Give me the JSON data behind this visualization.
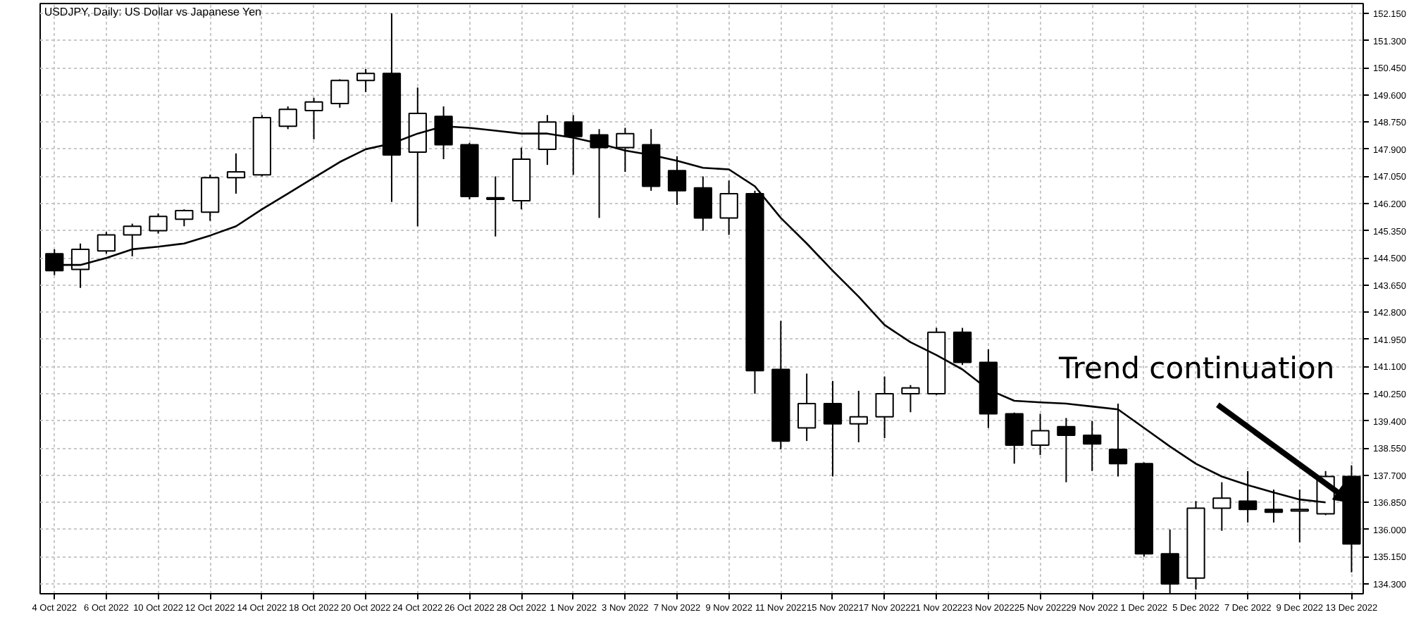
{
  "chart_data": {
    "type": "candlestick",
    "title": "USDJPY, Daily: US Dollar vs Japanese Yen",
    "categories": [
      "4 Oct 2022",
      null,
      "6 Oct 2022",
      null,
      "10 Oct 2022",
      null,
      "12 Oct 2022",
      null,
      "14 Oct 2022",
      null,
      "18 Oct 2022",
      null,
      "20 Oct 2022",
      null,
      "24 Oct 2022",
      null,
      "26 Oct 2022",
      null,
      "28 Oct 2022",
      null,
      "1 Nov 2022",
      null,
      "3 Nov 2022",
      null,
      "7 Nov 2022",
      null,
      "9 Nov 2022",
      null,
      "11 Nov 2022",
      null,
      "15 Nov 2022",
      null,
      "17 Nov 2022",
      null,
      "21 Nov 2022",
      null,
      "23 Nov 2022",
      null,
      "25 Nov 2022",
      null,
      "29 Nov 2022",
      null,
      "1 Dec 2022",
      null,
      "5 Dec 2022",
      null,
      "7 Dec 2022",
      null,
      "9 Dec 2022",
      null,
      "13 Dec 2022"
    ],
    "color": "#000000",
    "ohlc": [
      [
        144.63,
        144.77,
        143.96,
        144.1
      ],
      [
        144.14,
        144.95,
        143.56,
        144.77
      ],
      [
        144.72,
        145.31,
        144.63,
        145.22
      ],
      [
        145.22,
        145.57,
        144.55,
        145.49
      ],
      [
        145.35,
        145.89,
        145.26,
        145.8
      ],
      [
        145.71,
        146.02,
        145.49,
        145.98
      ],
      [
        145.93,
        147.1,
        145.66,
        147.01
      ],
      [
        147.01,
        147.77,
        146.51,
        147.19
      ],
      [
        147.1,
        148.97,
        147.05,
        148.89
      ],
      [
        148.62,
        149.24,
        148.53,
        149.15
      ],
      [
        149.11,
        149.51,
        148.21,
        149.38
      ],
      [
        149.33,
        150.09,
        149.2,
        150.05
      ],
      [
        150.05,
        150.41,
        149.69,
        150.27
      ],
      [
        150.27,
        152.15,
        146.25,
        147.72
      ],
      [
        147.81,
        149.83,
        145.49,
        149.02
      ],
      [
        148.93,
        149.24,
        147.59,
        148.04
      ],
      [
        148.04,
        148.1,
        146.33,
        146.42
      ],
      [
        146.38,
        147.05,
        145.17,
        146.33
      ],
      [
        146.29,
        147.95,
        146.02,
        147.59
      ],
      [
        147.9,
        148.97,
        147.41,
        148.75
      ],
      [
        148.75,
        148.97,
        147.1,
        148.3
      ],
      [
        148.35,
        148.53,
        145.75,
        147.95
      ],
      [
        147.95,
        148.57,
        147.19,
        148.39
      ],
      [
        148.04,
        148.53,
        146.6,
        146.74
      ],
      [
        147.23,
        147.68,
        146.16,
        146.6
      ],
      [
        146.69,
        147.05,
        145.35,
        145.75
      ],
      [
        145.75,
        146.92,
        145.22,
        146.51
      ],
      [
        146.51,
        146.6,
        140.25,
        140.97
      ],
      [
        141.01,
        142.53,
        138.51,
        138.77
      ],
      [
        139.18,
        140.88,
        138.77,
        139.94
      ],
      [
        139.94,
        140.65,
        137.66,
        139.31
      ],
      [
        139.31,
        140.34,
        138.73,
        139.53
      ],
      [
        139.53,
        140.79,
        138.86,
        140.25
      ],
      [
        140.25,
        140.52,
        139.67,
        140.43
      ],
      [
        140.25,
        142.31,
        140.21,
        142.17
      ],
      [
        142.17,
        142.31,
        141.15,
        141.23
      ],
      [
        141.23,
        141.64,
        139.18,
        139.62
      ],
      [
        139.62,
        139.66,
        138.06,
        138.64
      ],
      [
        138.64,
        139.62,
        138.33,
        139.09
      ],
      [
        139.22,
        139.49,
        137.48,
        138.95
      ],
      [
        138.95,
        139.4,
        137.83,
        138.68
      ],
      [
        138.51,
        139.94,
        137.66,
        138.06
      ],
      [
        138.06,
        138.1,
        135.15,
        135.24
      ],
      [
        135.24,
        136.0,
        133.99,
        134.3
      ],
      [
        134.48,
        136.89,
        134.12,
        136.67
      ],
      [
        136.67,
        137.48,
        135.96,
        136.98
      ],
      [
        136.89,
        137.83,
        136.22,
        136.63
      ],
      [
        136.63,
        137.25,
        136.22,
        136.54
      ],
      [
        136.58,
        137.25,
        135.6,
        136.63
      ],
      [
        136.49,
        137.83,
        136.45,
        137.66
      ],
      [
        137.66,
        138.01,
        134.66,
        135.55
      ]
    ],
    "series": [
      {
        "type": "line",
        "color": "#000000",
        "values": [
          144.28,
          144.28,
          144.5,
          144.77,
          144.85,
          144.95,
          145.2,
          145.49,
          146.02,
          146.51,
          147.01,
          147.5,
          147.9,
          148.08,
          148.39,
          148.62,
          148.57,
          148.48,
          148.39,
          148.39,
          148.26,
          148.08,
          147.86,
          147.72,
          147.54,
          147.32,
          147.27,
          146.74,
          145.75,
          144.95,
          144.1,
          143.29,
          142.4,
          141.86,
          141.46,
          141.01,
          140.38,
          140.03,
          139.98,
          139.94,
          139.85,
          139.76,
          139.18,
          138.6,
          138.06,
          137.66,
          137.39,
          137.16,
          136.94,
          136.85,
          null
        ]
      }
    ],
    "ylim": [
      133.99,
      152.46
    ],
    "yticks": [
      {
        "value": 134.3,
        "label": "134.300"
      },
      {
        "value": 135.15,
        "label": "135.150"
      },
      {
        "value": 136.0,
        "label": "136.000"
      },
      {
        "value": 136.85,
        "label": "136.850"
      },
      {
        "value": 137.7,
        "label": "137.700"
      },
      {
        "value": 138.55,
        "label": "138.550"
      },
      {
        "value": 139.4,
        "label": "139.400"
      },
      {
        "value": 140.25,
        "label": "140.250"
      },
      {
        "value": 141.1,
        "label": "141.100"
      },
      {
        "value": 141.95,
        "label": "141.950"
      },
      {
        "value": 142.8,
        "label": "142.800"
      },
      {
        "value": 143.65,
        "label": "143.650"
      },
      {
        "value": 144.5,
        "label": "144.500"
      },
      {
        "value": 145.35,
        "label": "145.350"
      },
      {
        "value": 146.2,
        "label": "146.200"
      },
      {
        "value": 147.05,
        "label": "147.050"
      },
      {
        "value": 147.9,
        "label": "147.900"
      },
      {
        "value": 148.75,
        "label": "148.750"
      },
      {
        "value": 149.6,
        "label": "149.600"
      },
      {
        "value": 150.45,
        "label": "150.450"
      },
      {
        "value": 151.3,
        "label": "151.300"
      },
      {
        "value": 152.15,
        "label": "152.150"
      }
    ],
    "grid": true,
    "annotations": [
      {
        "text": "Trend continuation",
        "x": "13 Dec 2022",
        "y": 136.85
      }
    ]
  }
}
